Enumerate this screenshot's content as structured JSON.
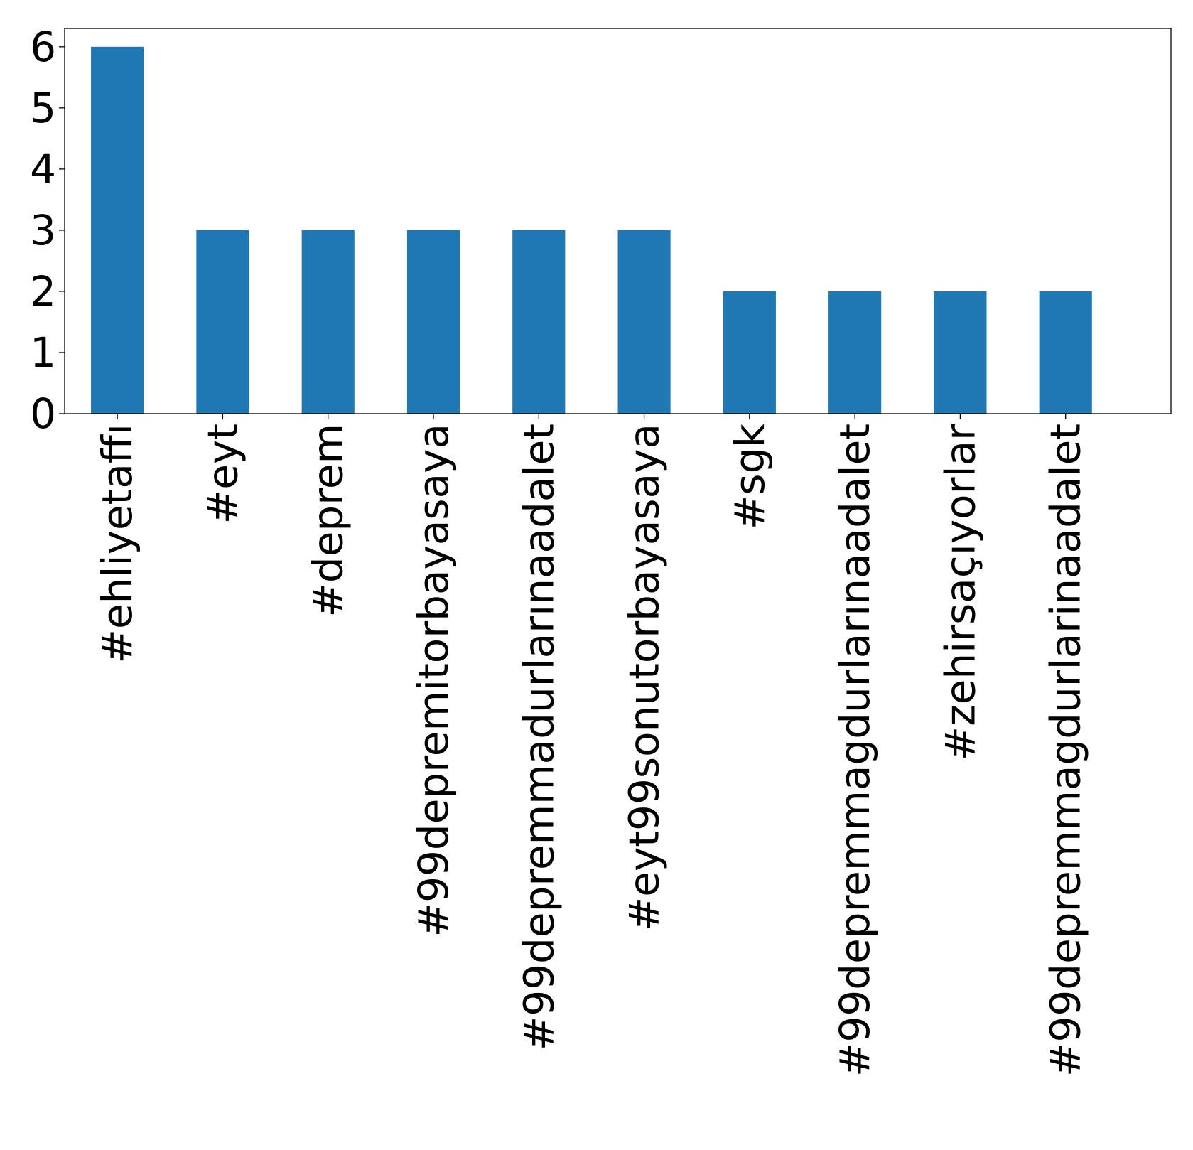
{
  "chart_data": {
    "type": "bar",
    "categories": [
      "#ehliyetaffı",
      "#eyt",
      "#deprem",
      "#99depremitorbayasaya",
      "#99depremmadurlarınaadalet",
      "#eyt99sonutorbayasaya",
      "#sgk",
      "#99depremmagdurlarınaadalet",
      "#zehirsaçıyorlar",
      "#99depremmagdurlarinaadalet"
    ],
    "values": [
      6,
      3,
      3,
      3,
      3,
      3,
      2,
      2,
      2,
      2
    ],
    "title": "",
    "xlabel": "",
    "ylabel": "",
    "ylim": [
      0,
      6.3
    ],
    "yticks": [
      0,
      1,
      2,
      3,
      4,
      5,
      6
    ],
    "grid": false,
    "bar_color": "#1f77b4"
  }
}
